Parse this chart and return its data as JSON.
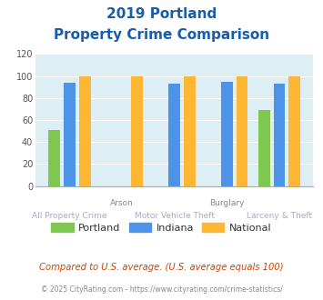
{
  "title_line1": "2019 Portland",
  "title_line2": "Property Crime Comparison",
  "portland_values": [
    51,
    0,
    0,
    0,
    69
  ],
  "indiana_values": [
    94,
    0,
    93,
    95,
    93
  ],
  "national_values": [
    100,
    100,
    100,
    100,
    100
  ],
  "portland_color": "#7ec850",
  "indiana_color": "#4d94e8",
  "national_color": "#ffb733",
  "ylim": [
    0,
    120
  ],
  "yticks": [
    0,
    20,
    40,
    60,
    80,
    100,
    120
  ],
  "title_color": "#1a5ca8",
  "plot_bg_color": "#ddeef5",
  "label_color_row1": "#888888",
  "label_color_row2": "#aaaacc",
  "note_text": "Compared to U.S. average. (U.S. average equals 100)",
  "footer_text": "© 2025 CityRating.com - https://www.cityrating.com/crime-statistics/",
  "note_color": "#cc4400",
  "footer_color": "#888888",
  "legend_labels": [
    "Portland",
    "Indiana",
    "National"
  ],
  "row1_labels": [
    "Arson",
    "Burglary"
  ],
  "row1_indices": [
    1,
    3
  ],
  "row2_labels": [
    "All Property Crime",
    "Motor Vehicle Theft",
    "Larceny & Theft"
  ],
  "row2_indices": [
    0,
    2,
    4
  ]
}
